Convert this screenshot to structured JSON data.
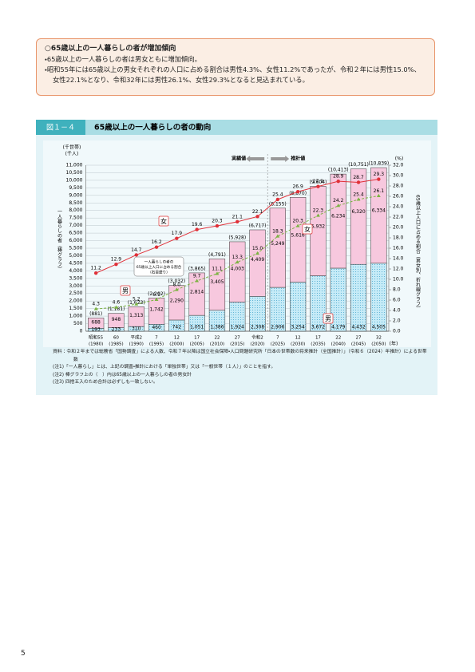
{
  "summary": {
    "heading": "○65歳以上の一人暮らしの者が増加傾向",
    "bullets": [
      "・65歳以上の一人暮らしの者は男女ともに増加傾向。",
      "・昭和55年には65歳以上の男女それぞれの人口に占める割合は男性4.3%、女性11.2%であったが、令和２年には男性15.0%、女性22.1%となり、令和32年には男性26.1%、女性29.3%となると見込まれている。"
    ]
  },
  "figure_label": "図１－４",
  "chart_data": {
    "type": "stacked-bar-line",
    "title": "65歳以上の一人暮らしの者の動向",
    "categories": [
      "昭和55",
      "60",
      "平成2",
      "7",
      "12",
      "17",
      "22",
      "27",
      "令和2",
      "7",
      "12",
      "17",
      "22",
      "27",
      "32"
    ],
    "category_years": [
      "(1980)",
      "(1985)",
      "(1990)",
      "(1995)",
      "(2000)",
      "(2005)",
      "(2010)",
      "(2015)",
      "(2020)",
      "(2025)",
      "(2030)",
      "(2035)",
      "(2040)",
      "(2045)",
      "(2050)"
    ],
    "series": [
      {
        "name": "男",
        "color": "#bfe7f5",
        "values": [
          193,
          233,
          310,
          460,
          742,
          1051,
          1386,
          1924,
          2308,
          2906,
          3254,
          3672,
          4179,
          4432,
          4505
        ],
        "value_labels": [
          "193",
          "233",
          "310",
          "460",
          "742",
          "1,051",
          "1,386",
          "1,924",
          "2,308",
          "2,906",
          "3,254",
          "3,672",
          "4,179",
          "4,432",
          "4,505"
        ]
      },
      {
        "name": "女",
        "color": "#f7c8de",
        "values": [
          688,
          948,
          1313,
          1742,
          2290,
          2814,
          3405,
          4003,
          4409,
          5249,
          5616,
          5932,
          6234,
          6320,
          6334
        ],
        "value_labels": [
          "688",
          "948",
          "1,313",
          "1,742",
          "2,290",
          "2,814",
          "3,405",
          "4,003",
          "4,409",
          "5,249",
          "5,616",
          "5,932",
          "6,234",
          "6,320",
          "6,334"
        ]
      },
      {
        "name": "男",
        "axis": "y2",
        "color": "#7cb342",
        "values": [
          4.3,
          4.6,
          5.2,
          6.1,
          8.0,
          9.7,
          11.1,
          13.3,
          15.0,
          18.3,
          20.3,
          22.3,
          24.2,
          25.4,
          26.1
        ],
        "value_labels": [
          "4.3",
          "4.6",
          "5.2",
          "6.1",
          "8.0",
          "9.7",
          "11.1",
          "13.3",
          "15.0",
          "18.3",
          "20.3",
          "22.3",
          "24.2",
          "25.4",
          "26.1"
        ]
      },
      {
        "name": "女",
        "axis": "y2",
        "color": "#e03038",
        "values": [
          11.2,
          12.9,
          14.7,
          16.2,
          17.9,
          19.6,
          20.3,
          21.1,
          22.1,
          25.4,
          26.9,
          27.9,
          28.9,
          28.7,
          29.3
        ],
        "value_labels": [
          "11.2",
          "12.9",
          "14.7",
          "16.2",
          "17.9",
          "19.6",
          "20.3",
          "21.1",
          "22.1",
          "25.4",
          "26.9",
          "27.9",
          "28.9",
          "28.7",
          "29.3"
        ]
      }
    ],
    "totals": {
      "values": [
        881,
        1181,
        1623,
        2202,
        3032,
        3865,
        4791,
        5928,
        6717,
        8155,
        8870,
        9604,
        10413,
        10751,
        10839
      ],
      "value_labels": [
        "(881)",
        "(1,181)",
        "(1,623)",
        "(2,202)",
        "(3,032)",
        "(3,865)",
        "(4,791)",
        "(5,928)",
        "(6,717)",
        "(8,155)",
        "(8,870)",
        "(9,604)",
        "(10,413)",
        "(10,751)",
        "(10,839)"
      ]
    },
    "ylim": [
      0,
      11000
    ],
    "yticks": [
      0,
      500,
      {
        "value": 1000,
        "label": "1,000"
      },
      {
        "value": 1500,
        "label": "1,500"
      },
      {
        "value": 2000,
        "label": "2,000"
      },
      {
        "value": 2500,
        "label": "2,500"
      },
      {
        "value": 3000,
        "label": "3,000"
      },
      {
        "value": 3500,
        "label": "3,500"
      },
      {
        "value": 4000,
        "label": "4,000"
      },
      {
        "value": 4500,
        "label": "4,500"
      },
      {
        "value": 5000,
        "label": "5,000"
      },
      {
        "value": 5500,
        "label": "5,500"
      },
      {
        "value": 6000,
        "label": "6,000"
      },
      {
        "value": 6500,
        "label": "6,500"
      },
      {
        "value": 7000,
        "label": "7,000"
      },
      {
        "value": 7500,
        "label": "7,500"
      },
      {
        "value": 8000,
        "label": "8,000"
      },
      {
        "value": 8500,
        "label": "8,500"
      },
      {
        "value": 9000,
        "label": "9,000"
      },
      {
        "value": 9500,
        "label": "9,500"
      },
      {
        "value": 10000,
        "label": "10,000"
      },
      {
        "value": 10500,
        "label": "10,500"
      },
      {
        "value": 11000,
        "label": "11,000"
      }
    ],
    "y2lim": [
      0,
      32
    ],
    "y2ticks": [
      {
        "value": 0,
        "label": "0.0"
      },
      {
        "value": 2,
        "label": "2.0"
      },
      {
        "value": 4,
        "label": "4.0"
      },
      {
        "value": 6,
        "label": "6.0"
      },
      {
        "value": 8,
        "label": "8.0"
      },
      {
        "value": 10,
        "label": "10.0"
      },
      {
        "value": 12,
        "label": "12.0"
      },
      {
        "value": 14,
        "label": "14.0"
      },
      {
        "value": 16,
        "label": "16.0"
      },
      {
        "value": 18,
        "label": "18.0"
      },
      {
        "value": 20,
        "label": "20.0"
      },
      {
        "value": 22,
        "label": "22.0"
      },
      {
        "value": 24,
        "label": "24.0"
      },
      {
        "value": 26,
        "label": "26.0"
      },
      {
        "value": 28,
        "label": "28.0"
      },
      {
        "value": 30,
        "label": "30.0"
      },
      {
        "value": 32,
        "label": "32.0"
      }
    ],
    "grid": true,
    "y_unit": [
      "(千世帯)",
      "(千人)"
    ],
    "y_label": "一人暮らしの者（棒グラフ）",
    "y2_unit": "(%)",
    "y2_label": "65歳以上人口に占める割合（男女別、折れ線グラフ）",
    "x_unit": "(年)",
    "actual_label": "実績値",
    "projected_label": "推計値",
    "callout": [
      "一人暮らしの者の",
      "65歳以上人口に占める割合",
      "（右目盛り）"
    ],
    "marks": {
      "female": "女",
      "male": "男"
    }
  },
  "notes": [
    "資料：令和２年までは総務省「国勢調査」による人数、令和７年以降は国立社会保障・人口問題研究所「日本の世帯数の将来推計（全国推計）」（令和６（2024）年推計）による世帯数",
    "(注1)「一人暮らし」とは、上記の調査・推計における「単独世帯」又は「一般世帯（１人）」のことを指す。",
    "(注2) 棒グラフ上の（　）内は65歳以上の一人暮らしの者の男女計",
    "(注3) 四捨五入のため合計は必ずしも一致しない。"
  ],
  "page_number": "5"
}
